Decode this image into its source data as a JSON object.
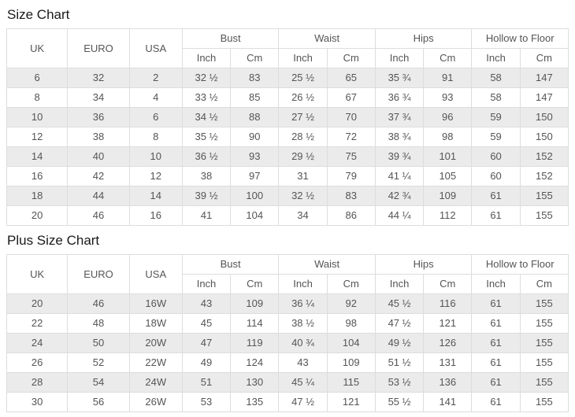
{
  "titles": {
    "size_chart": "Size Chart",
    "plus_size_chart": "Plus Size Chart"
  },
  "headers": {
    "uk": "UK",
    "euro": "EURO",
    "usa": "USA",
    "inch": "Inch",
    "cm": "Cm",
    "groups": [
      "Bust",
      "Waist",
      "Hips",
      "Hollow to Floor"
    ]
  },
  "colors": {
    "stripe_row": "#ebebeb",
    "border": "#dddddd",
    "cell_text": "#555555",
    "title_text": "#1a1a1a"
  },
  "chart_data": [
    {
      "type": "table",
      "title": "Size Chart",
      "columns": [
        "UK",
        "EURO",
        "USA",
        "Bust Inch",
        "Bust Cm",
        "Waist Inch",
        "Waist Cm",
        "Hips Inch",
        "Hips Cm",
        "Hollow to Floor Inch",
        "Hollow to Floor Cm"
      ],
      "rows": [
        [
          "6",
          "32",
          "2",
          "32 ½",
          "83",
          "25 ½",
          "65",
          "35 ¾",
          "91",
          "58",
          "147"
        ],
        [
          "8",
          "34",
          "4",
          "33 ½",
          "85",
          "26 ½",
          "67",
          "36 ¾",
          "93",
          "58",
          "147"
        ],
        [
          "10",
          "36",
          "6",
          "34 ½",
          "88",
          "27 ½",
          "70",
          "37 ¾",
          "96",
          "59",
          "150"
        ],
        [
          "12",
          "38",
          "8",
          "35 ½",
          "90",
          "28 ½",
          "72",
          "38 ¾",
          "98",
          "59",
          "150"
        ],
        [
          "14",
          "40",
          "10",
          "36 ½",
          "93",
          "29 ½",
          "75",
          "39 ¾",
          "101",
          "60",
          "152"
        ],
        [
          "16",
          "42",
          "12",
          "38",
          "97",
          "31",
          "79",
          "41 ¼",
          "105",
          "60",
          "152"
        ],
        [
          "18",
          "44",
          "14",
          "39 ½",
          "100",
          "32 ½",
          "83",
          "42 ¾",
          "109",
          "61",
          "155"
        ],
        [
          "20",
          "46",
          "16",
          "41",
          "104",
          "34",
          "86",
          "44 ¼",
          "112",
          "61",
          "155"
        ]
      ]
    },
    {
      "type": "table",
      "title": "Plus Size Chart",
      "columns": [
        "UK",
        "EURO",
        "USA",
        "Bust Inch",
        "Bust Cm",
        "Waist Inch",
        "Waist Cm",
        "Hips Inch",
        "Hips Cm",
        "Hollow to Floor Inch",
        "Hollow to Floor Cm"
      ],
      "rows": [
        [
          "20",
          "46",
          "16W",
          "43",
          "109",
          "36 ¼",
          "92",
          "45 ½",
          "116",
          "61",
          "155"
        ],
        [
          "22",
          "48",
          "18W",
          "45",
          "114",
          "38 ½",
          "98",
          "47 ½",
          "121",
          "61",
          "155"
        ],
        [
          "24",
          "50",
          "20W",
          "47",
          "119",
          "40 ¾",
          "104",
          "49 ½",
          "126",
          "61",
          "155"
        ],
        [
          "26",
          "52",
          "22W",
          "49",
          "124",
          "43",
          "109",
          "51 ½",
          "131",
          "61",
          "155"
        ],
        [
          "28",
          "54",
          "24W",
          "51",
          "130",
          "45 ¼",
          "115",
          "53 ½",
          "136",
          "61",
          "155"
        ],
        [
          "30",
          "56",
          "26W",
          "53",
          "135",
          "47 ½",
          "121",
          "55 ½",
          "141",
          "61",
          "155"
        ]
      ]
    }
  ]
}
